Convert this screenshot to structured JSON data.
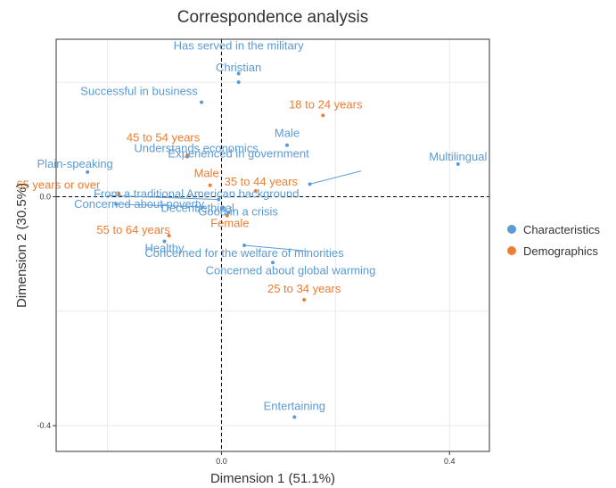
{
  "chart_data": {
    "type": "scatter",
    "title": "Correspondence analysis",
    "xlabel": "Dimension 1 (51.1%)",
    "ylabel": "Dimension 2 (30.5%)",
    "xlim": [
      -0.29,
      0.47
    ],
    "ylim": [
      -0.445,
      0.275
    ],
    "x_ticks": [
      {
        "value": 0.0,
        "label": "0.0"
      },
      {
        "value": 0.4,
        "label": "0.4"
      }
    ],
    "y_ticks": [
      {
        "value": 0.0,
        "label": "0.0"
      },
      {
        "value": -0.4,
        "label": "-0.4"
      }
    ],
    "grid": true,
    "reference_lines": {
      "x": 0,
      "y": 0,
      "style": "dashed"
    },
    "legend_position": "right",
    "series": [
      {
        "name": "Characteristics",
        "color": "#5b9bd5",
        "points": [
          {
            "label": "Has served in the military",
            "x": 0.03,
            "y": 0.215
          },
          {
            "label": "Christian",
            "x": 0.03,
            "y": 0.2
          },
          {
            "label": "Successful in business",
            "x": -0.035,
            "y": 0.165
          },
          {
            "label": "Male",
            "x": 0.115,
            "y": 0.09
          },
          {
            "label": "Understands economics",
            "x": -0.06,
            "y": 0.07
          },
          {
            "label": "Multilingual",
            "x": 0.415,
            "y": 0.057
          },
          {
            "label": "Plain-speaking",
            "x": -0.235,
            "y": 0.043
          },
          {
            "label": "Experienced in government",
            "x": 0.155,
            "y": 0.022
          },
          {
            "label": "From a traditional American background",
            "x": -0.005,
            "y": -0.005
          },
          {
            "label": "Concerned about poverty",
            "x": -0.185,
            "y": -0.013
          },
          {
            "label": "Decent/ethical",
            "x": 0.002,
            "y": -0.02
          },
          {
            "label": "Good in a crisis",
            "x": 0.012,
            "y": -0.028
          },
          {
            "label": "Healthy",
            "x": -0.1,
            "y": -0.078
          },
          {
            "label": "Concerned for the welfare of minorities",
            "x": 0.04,
            "y": -0.085
          },
          {
            "label": "Concerned about global warming",
            "x": 0.09,
            "y": -0.115
          },
          {
            "label": "Entertaining",
            "x": 0.128,
            "y": -0.385
          }
        ]
      },
      {
        "name": "Demographics",
        "color": "#ed7d31",
        "points": [
          {
            "label": "18 to 24 years",
            "x": 0.178,
            "y": 0.142
          },
          {
            "label": "45 to 54 years",
            "x": -0.06,
            "y": 0.072
          },
          {
            "label": "Male",
            "x": -0.02,
            "y": 0.02
          },
          {
            "label": "35 to 44 years",
            "x": 0.06,
            "y": 0.01
          },
          {
            "label": "65 years or over",
            "x": -0.18,
            "y": 0.005
          },
          {
            "label": "Female",
            "x": 0.01,
            "y": -0.033
          },
          {
            "label": "55 to 64 years",
            "x": -0.092,
            "y": -0.068
          },
          {
            "label": "25 to 34 years",
            "x": 0.145,
            "y": -0.18
          }
        ]
      }
    ]
  }
}
